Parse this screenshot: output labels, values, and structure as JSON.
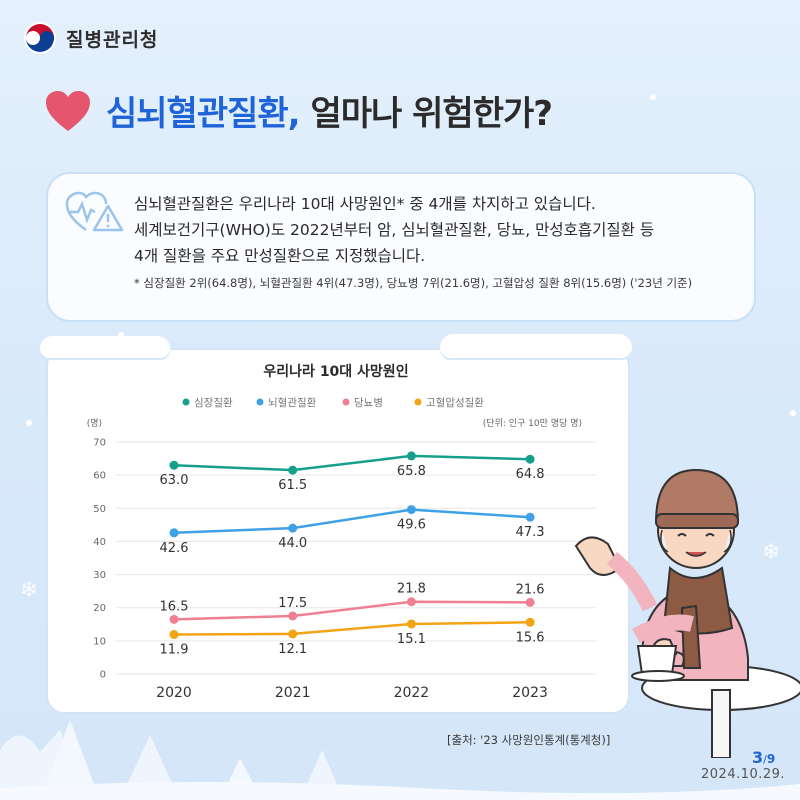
{
  "header": {
    "org_name": "질병관리청"
  },
  "headline": {
    "part_blue": "심뇌혈관질환,",
    "part_dark": "얼마나 위험한가?"
  },
  "info": {
    "lines": [
      "심뇌혈관질환은 우리나라 10대 사망원인* 중 4개를 차지하고 있습니다.",
      "세계보건기구(WHO)도 2022년부터 암, 심뇌혈관질환, 당뇨, 만성호흡기질환 등",
      "4개 질환을 주요 만성질환으로 지정했습니다."
    ],
    "footnote": "* 심장질환 2위(64.8명), 뇌혈관질환 4위(47.3명), 당뇨병 7위(21.6명), 고혈압성 질환 8위(15.6명) ('23년 기준)"
  },
  "chart_data": {
    "type": "line",
    "title": "우리나라 10대 사망원인",
    "ylabel": "(명)",
    "unit_note": "(단위: 인구 10만 명당 명)",
    "x": [
      "2020",
      "2021",
      "2022",
      "2023"
    ],
    "ylim": [
      0,
      70
    ],
    "yticks": [
      0,
      10,
      20,
      30,
      40,
      50,
      60,
      70
    ],
    "grid": true,
    "legend_position": "top",
    "series": [
      {
        "name": "심장질환",
        "color": "#16a08c",
        "values": [
          63.0,
          61.5,
          65.8,
          64.8
        ],
        "labels": [
          "63.0",
          "61.5",
          "65.8",
          "64.8"
        ]
      },
      {
        "name": "뇌혈관질환",
        "color": "#3fa0e8",
        "values": [
          42.6,
          44.0,
          49.6,
          47.3
        ],
        "labels": [
          "42.6",
          "44.0",
          "49.6",
          "47.3"
        ]
      },
      {
        "name": "당뇨병",
        "color": "#ef7f93",
        "values": [
          16.5,
          17.5,
          21.8,
          21.6
        ],
        "labels": [
          "16.5",
          "17.5",
          "21.8",
          "21.6"
        ]
      },
      {
        "name": "고혈압성질환",
        "color": "#f2a415",
        "values": [
          11.9,
          12.1,
          15.1,
          15.6
        ],
        "labels": [
          "11.9",
          "12.1",
          "15.1",
          "15.6"
        ]
      }
    ]
  },
  "source": "[출처: '23 사망원인통계(통계청)]",
  "page": {
    "current": "3",
    "total": "9"
  },
  "date": "2024.10.29.",
  "colors": {
    "accent": "#1f63d8",
    "heart": "#e5566e",
    "background": "#dcebfb"
  }
}
